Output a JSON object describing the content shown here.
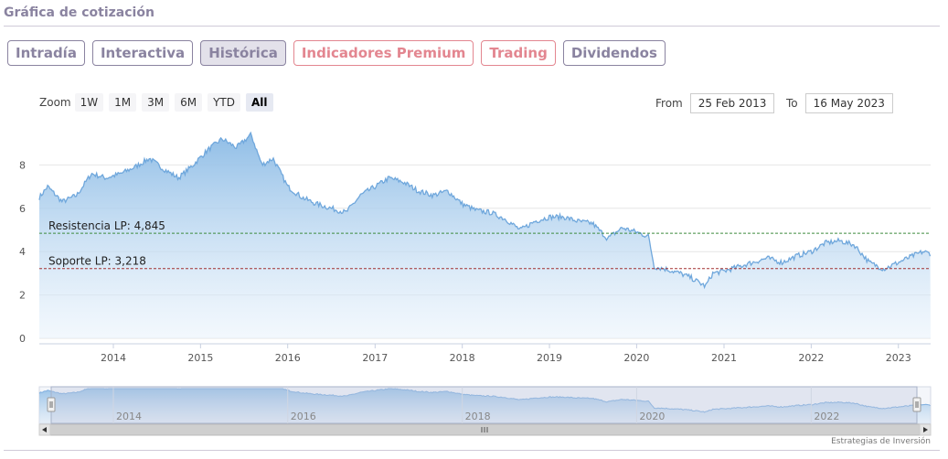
{
  "header": {
    "title": "Gráfica de cotización"
  },
  "tabs": [
    {
      "label": "Intradía",
      "state": "normal"
    },
    {
      "label": "Interactiva",
      "state": "normal"
    },
    {
      "label": "Histórica",
      "state": "active"
    },
    {
      "label": "Indicadores Premium",
      "state": "premium"
    },
    {
      "label": "Trading",
      "state": "premium"
    },
    {
      "label": "Dividendos",
      "state": "normal"
    }
  ],
  "zoom": {
    "label": "Zoom",
    "buttons": [
      "1W",
      "1M",
      "3M",
      "6M",
      "YTD",
      "All"
    ],
    "active": "All"
  },
  "range": {
    "from_label": "From",
    "from_value": "25 Feb 2013",
    "to_label": "To",
    "to_value": "16 May 2023"
  },
  "credit": "Estrategias de Inversión",
  "colors": {
    "line": "#6fa7dc",
    "area_top": "#8fbde6",
    "resistance": "#3d8b3d",
    "support": "#a23030",
    "tab_text": "#8a83a0",
    "premium": "#e38690"
  },
  "chart_data": {
    "type": "area",
    "x_range": [
      "2013-02-25",
      "2023-05-16"
    ],
    "ylim": [
      0,
      10
    ],
    "yticks": [
      0,
      2,
      4,
      6,
      8
    ],
    "xticks": [
      "2014",
      "2015",
      "2016",
      "2017",
      "2018",
      "2019",
      "2020",
      "2021",
      "2022",
      "2023"
    ],
    "grid": true,
    "series": [
      {
        "points": [
          [
            "2013-02-25",
            6.5
          ],
          [
            "2013-04-01",
            7.0
          ],
          [
            "2013-06-01",
            6.3
          ],
          [
            "2013-08-01",
            6.6
          ],
          [
            "2013-10-01",
            7.6
          ],
          [
            "2013-12-01",
            7.4
          ],
          [
            "2014-02-01",
            7.6
          ],
          [
            "2014-04-01",
            7.9
          ],
          [
            "2014-06-01",
            8.3
          ],
          [
            "2014-08-01",
            7.8
          ],
          [
            "2014-10-01",
            7.4
          ],
          [
            "2014-12-01",
            8.0
          ],
          [
            "2015-02-01",
            8.7
          ],
          [
            "2015-04-01",
            9.2
          ],
          [
            "2015-06-01",
            8.8
          ],
          [
            "2015-08-01",
            9.4
          ],
          [
            "2015-09-15",
            8.0
          ],
          [
            "2015-11-01",
            8.3
          ],
          [
            "2016-01-01",
            7.0
          ],
          [
            "2016-03-01",
            6.5
          ],
          [
            "2016-05-01",
            6.2
          ],
          [
            "2016-07-01",
            6.0
          ],
          [
            "2016-09-01",
            5.8
          ],
          [
            "2016-11-01",
            6.6
          ],
          [
            "2017-01-01",
            7.0
          ],
          [
            "2017-03-01",
            7.4
          ],
          [
            "2017-05-01",
            7.2
          ],
          [
            "2017-07-01",
            6.8
          ],
          [
            "2017-09-01",
            6.6
          ],
          [
            "2017-11-01",
            6.8
          ],
          [
            "2018-01-01",
            6.2
          ],
          [
            "2018-03-01",
            5.9
          ],
          [
            "2018-05-01",
            5.8
          ],
          [
            "2018-07-01",
            5.5
          ],
          [
            "2018-09-01",
            5.0
          ],
          [
            "2018-11-01",
            5.4
          ],
          [
            "2019-01-01",
            5.6
          ],
          [
            "2019-03-01",
            5.6
          ],
          [
            "2019-05-01",
            5.4
          ],
          [
            "2019-07-01",
            5.3
          ],
          [
            "2019-09-01",
            4.6
          ],
          [
            "2019-11-01",
            5.1
          ],
          [
            "2020-01-01",
            4.9
          ],
          [
            "2020-02-20",
            4.7
          ],
          [
            "2020-03-15",
            3.3
          ],
          [
            "2020-05-01",
            3.2
          ],
          [
            "2020-07-01",
            3.0
          ],
          [
            "2020-08-15",
            2.8
          ],
          [
            "2020-10-15",
            2.4
          ],
          [
            "2020-11-15",
            3.0
          ],
          [
            "2021-01-01",
            3.1
          ],
          [
            "2021-03-01",
            3.3
          ],
          [
            "2021-05-01",
            3.5
          ],
          [
            "2021-07-01",
            3.7
          ],
          [
            "2021-09-01",
            3.5
          ],
          [
            "2021-11-01",
            3.8
          ],
          [
            "2022-01-01",
            4.0
          ],
          [
            "2022-03-01",
            4.4
          ],
          [
            "2022-05-01",
            4.5
          ],
          [
            "2022-07-01",
            4.3
          ],
          [
            "2022-09-01",
            3.5
          ],
          [
            "2022-11-01",
            3.2
          ],
          [
            "2023-01-01",
            3.5
          ],
          [
            "2023-03-01",
            3.8
          ],
          [
            "2023-04-15",
            4.0
          ],
          [
            "2023-05-16",
            3.9
          ]
        ]
      }
    ],
    "annotations": [
      {
        "label": "Resistencia LP: 4,845",
        "y": 4.845
      },
      {
        "label": "Soporte LP: 3,218",
        "y": 3.218
      }
    ],
    "navigator": {
      "xticks": [
        "2014",
        "2016",
        "2018",
        "2020",
        "2022"
      ]
    }
  }
}
